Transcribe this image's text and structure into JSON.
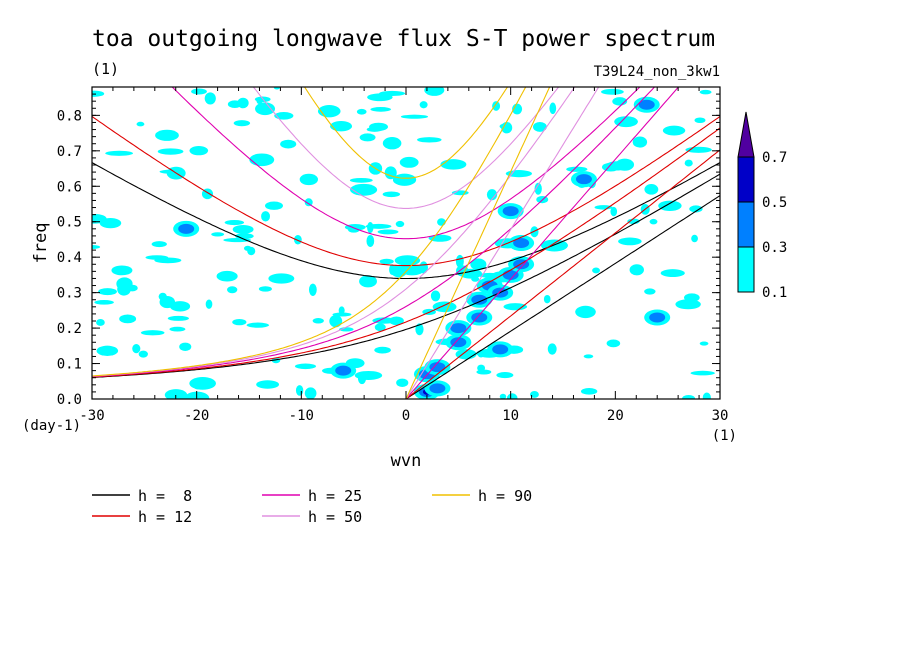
{
  "chart_data": {
    "type": "heatmap",
    "title": "toa outgoing longwave flux S-T power spectrum",
    "subtitle_left": "(1)",
    "subtitle_right": "T39L24_non_3kw1",
    "xlabel": "wvn",
    "ylabel": "freq",
    "x_unit": "(1)",
    "y_unit": "(day-1)",
    "xlim": [
      -30,
      30
    ],
    "ylim": [
      0,
      0.88
    ],
    "x_ticks": [
      -30,
      -20,
      -10,
      0,
      10,
      20,
      30
    ],
    "x_tick_labels": [
      "-30",
      "-20",
      "-10",
      "0",
      "10",
      "20",
      "30"
    ],
    "y_ticks": [
      0,
      0.1,
      0.2,
      0.3,
      0.4,
      0.5,
      0.6,
      0.7,
      0.8
    ],
    "y_tick_labels": [
      "0.0",
      "0.1",
      "0.2",
      "0.3",
      "0.4",
      "0.5",
      "0.6",
      "0.7",
      "0.8"
    ],
    "colorbar": {
      "levels": [
        0.1,
        0.3,
        0.5,
        0.7
      ],
      "labels": [
        "0.1",
        "0.3",
        "0.5",
        "0.7"
      ],
      "colors": [
        "#00ffff",
        "#0080ff",
        "#0000c8",
        "#5000a0"
      ],
      "extend": "max"
    },
    "dispersion_curves": [
      {
        "name": "h =  8",
        "h": 8,
        "color": "#000000"
      },
      {
        "name": "h = 12",
        "h": 12,
        "color": "#e00000"
      },
      {
        "name": "h = 25",
        "h": 25,
        "color": "#e000b0"
      },
      {
        "name": "h = 50",
        "h": 50,
        "color": "#e090e0"
      },
      {
        "name": "h = 90",
        "h": 90,
        "color": "#f0c000"
      }
    ],
    "legend_labels": [
      "h =  8",
      "h = 12",
      "h = 25",
      "h = 50",
      "h = 90"
    ],
    "spectral_peaks": [
      {
        "k": 2,
        "f": 0.02,
        "level": 0.7
      },
      {
        "k": 3,
        "f": 0.03,
        "level": 0.5
      },
      {
        "k": 2,
        "f": 0.07,
        "level": 0.5
      },
      {
        "k": 3,
        "f": 0.09,
        "level": 0.3
      },
      {
        "k": 5,
        "f": 0.16,
        "level": 0.5
      },
      {
        "k": 5,
        "f": 0.2,
        "level": 0.5
      },
      {
        "k": 7,
        "f": 0.23,
        "level": 0.3
      },
      {
        "k": 7,
        "f": 0.28,
        "level": 0.5
      },
      {
        "k": 8,
        "f": 0.32,
        "level": 0.5
      },
      {
        "k": 9,
        "f": 0.3,
        "level": 0.3
      },
      {
        "k": 10,
        "f": 0.35,
        "level": 0.3
      },
      {
        "k": 11,
        "f": 0.38,
        "level": 0.5
      },
      {
        "k": 11,
        "f": 0.44,
        "level": 0.5
      },
      {
        "k": 10,
        "f": 0.53,
        "level": 0.5
      },
      {
        "k": 17,
        "f": 0.62,
        "level": 0.5
      },
      {
        "k": 24,
        "f": 0.23,
        "level": 0.3
      },
      {
        "k": 23,
        "f": 0.83,
        "level": 0.3
      },
      {
        "k": -21,
        "f": 0.48,
        "level": 0.3
      },
      {
        "k": -6,
        "f": 0.08,
        "level": 0.3
      },
      {
        "k": 9,
        "f": 0.14,
        "level": 0.3
      }
    ]
  }
}
